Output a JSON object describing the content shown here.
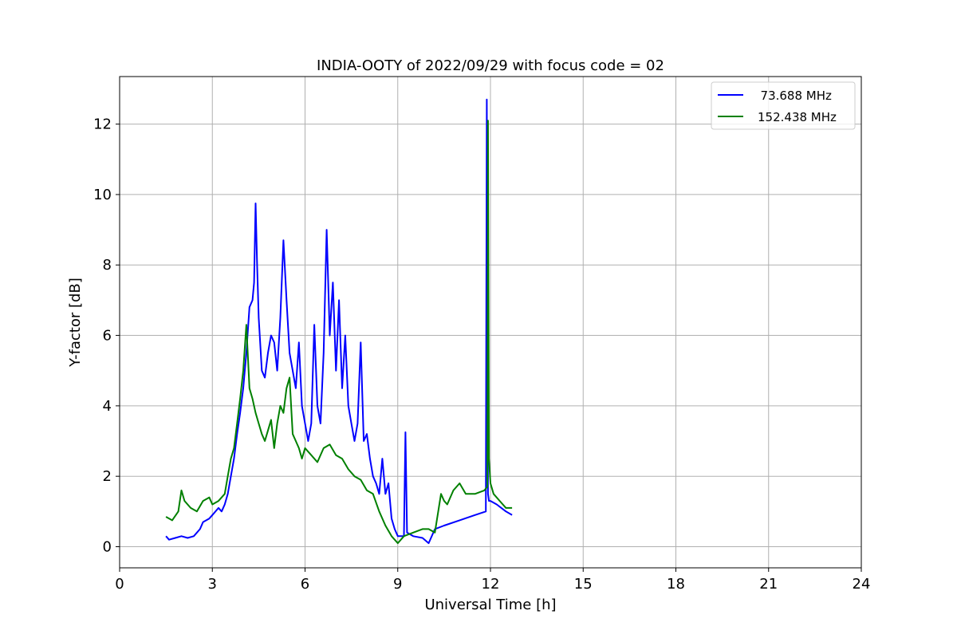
{
  "chart_data": {
    "type": "line",
    "title": "INDIA-OOTY of 2022/09/29 with focus code = 02",
    "xlabel": "Universal Time [h]",
    "ylabel": "Y-factor [dB]",
    "xlim": [
      0,
      24
    ],
    "ylim": [
      -0.6,
      13.35
    ],
    "x_ticks": [
      0,
      3,
      6,
      9,
      12,
      15,
      18,
      21,
      24
    ],
    "x_tick_labels": [
      "0",
      "3",
      "6",
      "9",
      "12",
      "15",
      "18",
      "21",
      "24"
    ],
    "y_ticks": [
      0,
      2,
      4,
      6,
      8,
      10,
      12
    ],
    "y_tick_labels": [
      "0",
      "2",
      "4",
      "6",
      "8",
      "10",
      "12"
    ],
    "grid": true,
    "legend_position": "top-right",
    "series": [
      {
        "name": "73.688 MHz",
        "legend_label": "  73.688 MHz",
        "color": "#0000ff",
        "x": [
          1.5,
          1.6,
          1.8,
          2.0,
          2.2,
          2.4,
          2.6,
          2.7,
          2.9,
          3.0,
          3.2,
          3.3,
          3.4,
          3.5,
          3.6,
          3.7,
          3.8,
          3.9,
          4.0,
          4.1,
          4.2,
          4.3,
          4.35,
          4.4,
          4.45,
          4.5,
          4.6,
          4.7,
          4.8,
          4.9,
          5.0,
          5.1,
          5.2,
          5.3,
          5.4,
          5.5,
          5.6,
          5.7,
          5.8,
          5.9,
          6.0,
          6.1,
          6.2,
          6.3,
          6.4,
          6.5,
          6.6,
          6.7,
          6.8,
          6.9,
          7.0,
          7.1,
          7.2,
          7.3,
          7.4,
          7.5,
          7.6,
          7.7,
          7.8,
          7.9,
          8.0,
          8.1,
          8.2,
          8.3,
          8.4,
          8.5,
          8.6,
          8.7,
          8.8,
          8.9,
          9.0,
          9.2,
          9.25,
          9.3,
          9.5,
          9.8,
          10.0,
          10.2,
          10.5,
          11.0,
          11.5,
          11.85,
          11.88,
          11.92,
          11.95,
          12.0,
          12.2,
          12.5,
          12.7
        ],
        "values": [
          0.3,
          0.2,
          0.25,
          0.3,
          0.25,
          0.3,
          0.5,
          0.7,
          0.8,
          0.9,
          1.1,
          1.0,
          1.2,
          1.5,
          2.0,
          2.5,
          3.2,
          3.8,
          4.5,
          5.5,
          6.8,
          7.0,
          7.5,
          9.75,
          8.0,
          6.5,
          5.0,
          4.8,
          5.5,
          6.0,
          5.8,
          5.0,
          6.5,
          8.7,
          7.0,
          5.5,
          5.0,
          4.5,
          5.8,
          4.0,
          3.5,
          3.0,
          3.5,
          6.3,
          4.0,
          3.5,
          5.5,
          9.0,
          6.0,
          7.5,
          5.0,
          7.0,
          4.5,
          6.0,
          4.0,
          3.5,
          3.0,
          3.5,
          5.8,
          3.0,
          3.2,
          2.5,
          2.0,
          1.8,
          1.5,
          2.5,
          1.5,
          1.8,
          0.8,
          0.5,
          0.3,
          0.3,
          3.25,
          0.4,
          0.3,
          0.25,
          0.1,
          0.5,
          0.6,
          0.75,
          0.9,
          1.0,
          12.7,
          1.5,
          1.3,
          1.3,
          1.2,
          1.0,
          0.9
        ]
      },
      {
        "name": "152.438 MHz",
        "legend_label": "152.438 MHz",
        "color": "#008000",
        "x": [
          1.5,
          1.7,
          1.9,
          2.0,
          2.1,
          2.3,
          2.5,
          2.7,
          2.9,
          3.0,
          3.2,
          3.4,
          3.5,
          3.6,
          3.7,
          3.8,
          3.9,
          4.0,
          4.1,
          4.2,
          4.3,
          4.4,
          4.5,
          4.6,
          4.7,
          4.8,
          4.9,
          5.0,
          5.1,
          5.2,
          5.3,
          5.4,
          5.5,
          5.6,
          5.7,
          5.8,
          5.9,
          6.0,
          6.2,
          6.4,
          6.6,
          6.8,
          7.0,
          7.2,
          7.4,
          7.6,
          7.8,
          8.0,
          8.2,
          8.4,
          8.6,
          8.8,
          9.0,
          9.2,
          9.5,
          9.8,
          10.0,
          10.2,
          10.4,
          10.5,
          10.6,
          10.8,
          11.0,
          11.2,
          11.5,
          11.8,
          11.9,
          11.92,
          11.95,
          12.0,
          12.1,
          12.3,
          12.5,
          12.7
        ],
        "values": [
          0.85,
          0.75,
          1.0,
          1.6,
          1.3,
          1.1,
          1.0,
          1.3,
          1.4,
          1.2,
          1.3,
          1.5,
          2.0,
          2.5,
          2.8,
          3.5,
          4.2,
          5.0,
          6.3,
          4.5,
          4.2,
          3.8,
          3.5,
          3.2,
          3.0,
          3.3,
          3.6,
          2.8,
          3.5,
          4.0,
          3.8,
          4.5,
          4.8,
          3.2,
          3.0,
          2.8,
          2.5,
          2.8,
          2.6,
          2.4,
          2.8,
          2.9,
          2.6,
          2.5,
          2.2,
          2.0,
          1.9,
          1.6,
          1.5,
          1.0,
          0.6,
          0.3,
          0.1,
          0.3,
          0.4,
          0.5,
          0.5,
          0.4,
          1.5,
          1.3,
          1.2,
          1.6,
          1.8,
          1.5,
          1.5,
          1.6,
          1.7,
          12.1,
          2.5,
          1.8,
          1.5,
          1.3,
          1.1,
          1.1
        ]
      }
    ]
  }
}
